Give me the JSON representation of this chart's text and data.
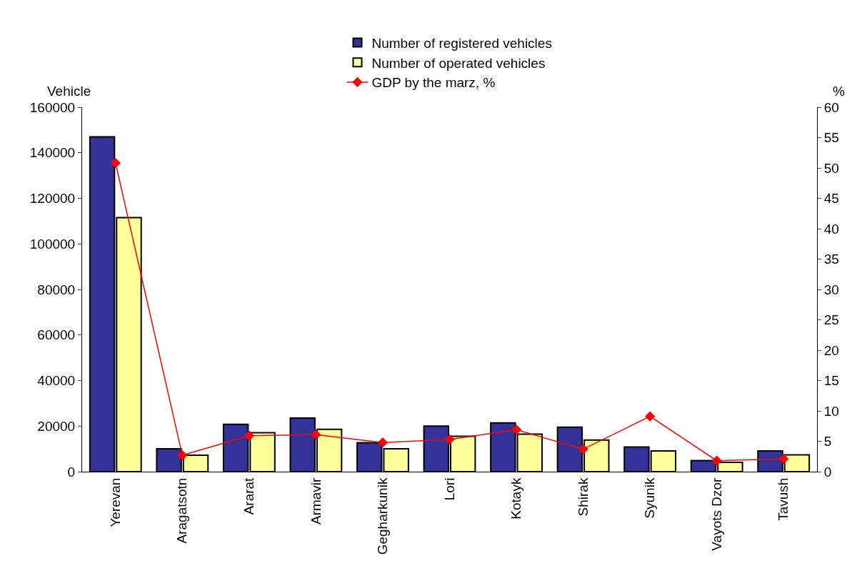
{
  "chart_data": {
    "type": "bar",
    "categories": [
      "Yerevan",
      "Aragatsotn",
      "Ararat",
      "Armavir",
      "Gegharkunik",
      "Lori",
      "Kotayk",
      "Shirak",
      "Syunik",
      "Vayots Dzor",
      "Tavush"
    ],
    "series": [
      {
        "name": "Number of registered vehicles",
        "color": "#333399",
        "values": [
          147000,
          10000,
          20800,
          23500,
          12700,
          20000,
          21400,
          19500,
          10800,
          4900,
          9100
        ]
      },
      {
        "name": "Number of operated vehicles",
        "color": "#ffff99",
        "values": [
          111500,
          7200,
          17100,
          18600,
          10000,
          15500,
          16500,
          13900,
          9100,
          4100,
          7400
        ]
      },
      {
        "name": "GDP by the marz, %",
        "type": "line",
        "axis": "y2",
        "color": "#ff0000",
        "marker": "diamond",
        "values": [
          50.8,
          2.7,
          5.9,
          6.1,
          4.8,
          5.3,
          6.9,
          3.7,
          9.1,
          1.8,
          2.1
        ]
      }
    ],
    "ylabel": "Vehicle",
    "y2label": "%",
    "ylim": [
      0,
      160000
    ],
    "yticks": [
      0,
      20000,
      40000,
      60000,
      80000,
      100000,
      120000,
      140000,
      160000
    ],
    "y2lim": [
      0,
      60
    ],
    "y2ticks": [
      0,
      5,
      10,
      15,
      20,
      25,
      30,
      35,
      40,
      45,
      50,
      55,
      60
    ],
    "legend": "top"
  }
}
